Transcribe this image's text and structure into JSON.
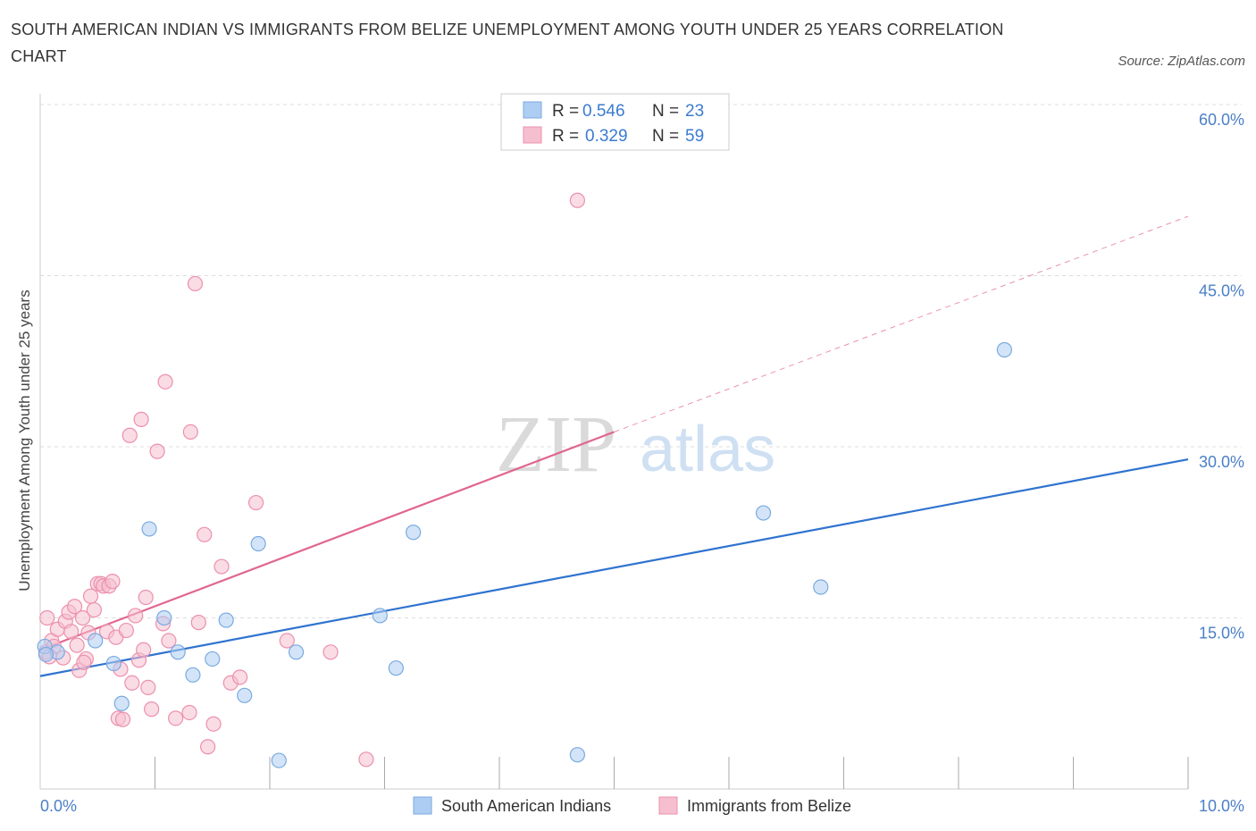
{
  "title": "SOUTH AMERICAN INDIAN VS IMMIGRANTS FROM BELIZE UNEMPLOYMENT AMONG YOUTH UNDER 25 YEARS CORRELATION CHART",
  "source": "Source: ZipAtlas.com",
  "watermark": {
    "zip": "ZIP",
    "atlas": "atlas"
  },
  "colors": {
    "blue_fill": "#aecdf3",
    "blue_stroke": "#7aaae0",
    "blue_line": "#2f73d0",
    "pink_fill": "#f6bfd0",
    "pink_stroke": "#ec90ad",
    "pink_line": "#e06690",
    "axis_label": "#4a7fc8",
    "grid": "#dddddd"
  },
  "legend_stats": [
    {
      "r_label": "R = ",
      "r_value": "0.546",
      "n_label": "N = ",
      "n_value": "23"
    },
    {
      "r_label": "R = ",
      "r_value": "0.329",
      "n_label": "N = ",
      "n_value": "59"
    }
  ],
  "chart_data": {
    "type": "scatter",
    "title": "SOUTH AMERICAN INDIAN VS IMMIGRANTS FROM BELIZE UNEMPLOYMENT AMONG YOUTH UNDER 25 YEARS CORRELATION CHART",
    "xlabel": "",
    "ylabel": "Unemployment Among Youth under 25 years",
    "xlim": [
      0,
      10
    ],
    "ylim": [
      0,
      60
    ],
    "x_tick_labels": [
      "0.0%",
      "10.0%"
    ],
    "y_ticks": [
      15,
      30,
      45,
      60
    ],
    "y_tick_labels": [
      "15.0%",
      "30.0%",
      "45.0%",
      "60.0%"
    ],
    "series": [
      {
        "name": "South American Indians",
        "color": "blue",
        "points": [
          [
            0.04,
            12.5
          ],
          [
            0.15,
            12.0
          ],
          [
            0.48,
            13.0
          ],
          [
            0.64,
            11.0
          ],
          [
            0.71,
            7.5
          ],
          [
            0.95,
            22.8
          ],
          [
            1.08,
            15.0
          ],
          [
            1.2,
            12.0
          ],
          [
            1.33,
            10.0
          ],
          [
            1.5,
            11.4
          ],
          [
            1.62,
            14.8
          ],
          [
            1.78,
            8.2
          ],
          [
            1.9,
            21.5
          ],
          [
            2.08,
            2.5
          ],
          [
            2.23,
            12.0
          ],
          [
            2.96,
            15.2
          ],
          [
            3.1,
            10.6
          ],
          [
            3.25,
            22.5
          ],
          [
            4.68,
            3.0
          ],
          [
            6.3,
            24.2
          ],
          [
            6.8,
            17.7
          ],
          [
            8.4,
            38.5
          ],
          [
            0.05,
            11.8
          ]
        ],
        "trend": {
          "x0": 0,
          "y0": 9.9,
          "x1": 10,
          "y1": 28.9,
          "dashed": false
        }
      },
      {
        "name": "Immigrants from Belize",
        "color": "pink",
        "points": [
          [
            0.06,
            15.0
          ],
          [
            0.05,
            12.0
          ],
          [
            0.1,
            13.0
          ],
          [
            0.12,
            12.5
          ],
          [
            0.15,
            14.0
          ],
          [
            0.2,
            11.5
          ],
          [
            0.22,
            14.7
          ],
          [
            0.25,
            15.5
          ],
          [
            0.27,
            13.8
          ],
          [
            0.3,
            16.0
          ],
          [
            0.32,
            12.6
          ],
          [
            0.34,
            10.4
          ],
          [
            0.37,
            15.0
          ],
          [
            0.4,
            11.4
          ],
          [
            0.42,
            13.7
          ],
          [
            0.44,
            16.9
          ],
          [
            0.47,
            15.7
          ],
          [
            0.5,
            18.0
          ],
          [
            0.53,
            18.0
          ],
          [
            0.55,
            17.8
          ],
          [
            0.58,
            13.8
          ],
          [
            0.6,
            17.8
          ],
          [
            0.63,
            18.2
          ],
          [
            0.66,
            13.3
          ],
          [
            0.68,
            6.2
          ],
          [
            0.7,
            10.5
          ],
          [
            0.72,
            6.1
          ],
          [
            0.75,
            13.9
          ],
          [
            0.78,
            31.0
          ],
          [
            0.8,
            9.3
          ],
          [
            0.83,
            15.2
          ],
          [
            0.86,
            11.3
          ],
          [
            0.88,
            32.4
          ],
          [
            0.9,
            12.2
          ],
          [
            0.92,
            16.8
          ],
          [
            0.94,
            8.9
          ],
          [
            0.97,
            7.0
          ],
          [
            1.02,
            29.6
          ],
          [
            1.07,
            14.5
          ],
          [
            1.09,
            35.7
          ],
          [
            1.12,
            13.0
          ],
          [
            1.18,
            6.2
          ],
          [
            1.3,
            6.7
          ],
          [
            1.31,
            31.3
          ],
          [
            1.35,
            44.3
          ],
          [
            1.38,
            14.6
          ],
          [
            1.43,
            22.3
          ],
          [
            1.46,
            3.7
          ],
          [
            1.51,
            5.7
          ],
          [
            1.58,
            19.5
          ],
          [
            1.66,
            9.3
          ],
          [
            1.74,
            9.8
          ],
          [
            1.88,
            25.1
          ],
          [
            2.15,
            13.0
          ],
          [
            2.53,
            12.0
          ],
          [
            2.84,
            2.6
          ],
          [
            4.68,
            51.6
          ],
          [
            0.08,
            11.6
          ],
          [
            0.38,
            11.1
          ]
        ],
        "trend": {
          "x0": 0,
          "y0": 12.2,
          "x1": 5.0,
          "y1": 31.3,
          "dashed": false,
          "extension": {
            "x0": 5.0,
            "y0": 31.3,
            "x1": 10,
            "y1": 50.2,
            "dashed": true
          }
        }
      }
    ],
    "legend": [
      "South American Indians",
      "Immigrants from Belize"
    ]
  }
}
